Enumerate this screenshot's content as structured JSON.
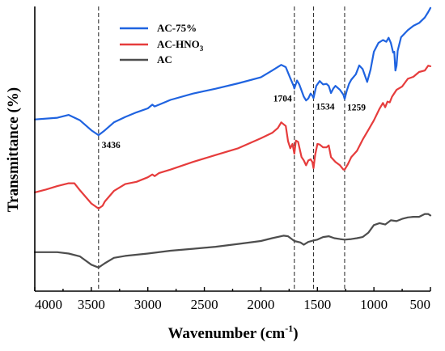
{
  "chart_data": {
    "type": "line",
    "title": "",
    "xlabel": "Wavenumber (cm",
    "xlabel_sup": "-1",
    "xlabel_suffix": ")",
    "ylabel": "Transmittance (%)",
    "xlim": [
      4000,
      500
    ],
    "x_reversed": true,
    "ylim": [
      0,
      100
    ],
    "y_ticks_labeled": false,
    "x_ticks": [
      4000,
      3500,
      3000,
      2500,
      2000,
      1500,
      1000,
      500
    ],
    "x_tick_labels": [
      "4000",
      "3500",
      "3000",
      "2500",
      "2000",
      "1500",
      "1000",
      "500"
    ],
    "legend_placement": "top-left",
    "grid": false,
    "reference_lines": [
      3436,
      1704,
      1534,
      1259
    ],
    "annotations": [
      {
        "text": "3436",
        "x": 3436,
        "series": "AC-75%"
      },
      {
        "text": "1704",
        "x": 1704,
        "series": "AC-75%"
      },
      {
        "text": "1534",
        "x": 1534,
        "series": "AC-75%"
      },
      {
        "text": "1259",
        "x": 1259,
        "series": "AC-75%"
      }
    ],
    "series": [
      {
        "name": "AC-75%",
        "legend_label": "AC-75%",
        "color": "#1f63e0",
        "points": [
          [
            4000,
            60.3
          ],
          [
            3800,
            60.9
          ],
          [
            3700,
            61.9
          ],
          [
            3600,
            60.0
          ],
          [
            3500,
            56.5
          ],
          [
            3436,
            54.8
          ],
          [
            3380,
            56.5
          ],
          [
            3300,
            59.3
          ],
          [
            3200,
            61.2
          ],
          [
            3100,
            62.8
          ],
          [
            3000,
            64.2
          ],
          [
            2960,
            65.5
          ],
          [
            2940,
            64.9
          ],
          [
            2900,
            65.5
          ],
          [
            2800,
            67.2
          ],
          [
            2600,
            69.4
          ],
          [
            2400,
            71.1
          ],
          [
            2200,
            73.0
          ],
          [
            2000,
            75.1
          ],
          [
            1900,
            77.5
          ],
          [
            1820,
            79.5
          ],
          [
            1780,
            78.7
          ],
          [
            1740,
            74.8
          ],
          [
            1710,
            72.1
          ],
          [
            1704,
            71.2
          ],
          [
            1680,
            74.0
          ],
          [
            1660,
            72.6
          ],
          [
            1620,
            68.3
          ],
          [
            1600,
            67.0
          ],
          [
            1580,
            67.7
          ],
          [
            1560,
            69.4
          ],
          [
            1545,
            68.7
          ],
          [
            1534,
            67.8
          ],
          [
            1510,
            72.1
          ],
          [
            1480,
            73.8
          ],
          [
            1450,
            72.6
          ],
          [
            1420,
            72.8
          ],
          [
            1400,
            72.1
          ],
          [
            1380,
            69.6
          ],
          [
            1360,
            71.1
          ],
          [
            1340,
            72.1
          ],
          [
            1300,
            70.7
          ],
          [
            1270,
            69.0
          ],
          [
            1259,
            67.5
          ],
          [
            1240,
            70.4
          ],
          [
            1220,
            72.8
          ],
          [
            1200,
            74.3
          ],
          [
            1160,
            76.2
          ],
          [
            1130,
            79.3
          ],
          [
            1100,
            78.0
          ],
          [
            1080,
            75.8
          ],
          [
            1060,
            73.5
          ],
          [
            1030,
            77.8
          ],
          [
            1000,
            84.1
          ],
          [
            960,
            87.2
          ],
          [
            920,
            88.2
          ],
          [
            890,
            87.6
          ],
          [
            870,
            89.0
          ],
          [
            850,
            87.2
          ],
          [
            830,
            83.8
          ],
          [
            820,
            84.1
          ],
          [
            810,
            77.5
          ],
          [
            800,
            79.2
          ],
          [
            790,
            84.4
          ],
          [
            760,
            89.2
          ],
          [
            700,
            91.7
          ],
          [
            650,
            93.2
          ],
          [
            600,
            94.2
          ],
          [
            550,
            96.1
          ],
          [
            520,
            98.0
          ],
          [
            500,
            99.5
          ]
        ]
      },
      {
        "name": "AC-HNO3",
        "legend_label_main": "AC-HNO",
        "legend_label_sub": "3",
        "color": "#e63c3c",
        "points": [
          [
            4000,
            34.7
          ],
          [
            3900,
            35.7
          ],
          [
            3800,
            36.9
          ],
          [
            3700,
            37.9
          ],
          [
            3650,
            37.9
          ],
          [
            3600,
            35.4
          ],
          [
            3500,
            30.8
          ],
          [
            3436,
            29.0
          ],
          [
            3400,
            30.0
          ],
          [
            3380,
            31.5
          ],
          [
            3300,
            35.2
          ],
          [
            3200,
            37.6
          ],
          [
            3100,
            38.4
          ],
          [
            3000,
            40.0
          ],
          [
            2960,
            41.0
          ],
          [
            2940,
            40.4
          ],
          [
            2900,
            41.5
          ],
          [
            2800,
            42.7
          ],
          [
            2600,
            45.4
          ],
          [
            2400,
            47.8
          ],
          [
            2200,
            50.2
          ],
          [
            2000,
            53.7
          ],
          [
            1900,
            55.6
          ],
          [
            1850,
            57.3
          ],
          [
            1820,
            59.3
          ],
          [
            1780,
            58.0
          ],
          [
            1760,
            52.7
          ],
          [
            1740,
            50.2
          ],
          [
            1720,
            51.7
          ],
          [
            1704,
            48.3
          ],
          [
            1690,
            52.9
          ],
          [
            1670,
            52.4
          ],
          [
            1640,
            47.1
          ],
          [
            1620,
            45.9
          ],
          [
            1600,
            44.2
          ],
          [
            1580,
            45.9
          ],
          [
            1560,
            46.3
          ],
          [
            1545,
            45.4
          ],
          [
            1534,
            43.2
          ],
          [
            1520,
            47.8
          ],
          [
            1500,
            51.7
          ],
          [
            1480,
            51.5
          ],
          [
            1450,
            50.5
          ],
          [
            1420,
            50.5
          ],
          [
            1400,
            51.2
          ],
          [
            1380,
            47.1
          ],
          [
            1340,
            45.4
          ],
          [
            1300,
            44.2
          ],
          [
            1270,
            42.7
          ],
          [
            1259,
            42.7
          ],
          [
            1230,
            44.6
          ],
          [
            1200,
            47.1
          ],
          [
            1150,
            49.3
          ],
          [
            1100,
            53.2
          ],
          [
            1050,
            56.6
          ],
          [
            1000,
            60.0
          ],
          [
            950,
            64.1
          ],
          [
            920,
            66.1
          ],
          [
            900,
            64.6
          ],
          [
            880,
            66.6
          ],
          [
            860,
            66.3
          ],
          [
            840,
            68.3
          ],
          [
            800,
            70.7
          ],
          [
            750,
            71.9
          ],
          [
            700,
            74.6
          ],
          [
            650,
            75.3
          ],
          [
            600,
            77.0
          ],
          [
            550,
            77.5
          ],
          [
            520,
            79.2
          ],
          [
            500,
            79.0
          ]
        ]
      },
      {
        "name": "AC",
        "legend_label": "AC",
        "color": "#4d4d4d",
        "points": [
          [
            4000,
            13.7
          ],
          [
            3800,
            13.7
          ],
          [
            3700,
            13.2
          ],
          [
            3600,
            12.2
          ],
          [
            3500,
            9.3
          ],
          [
            3436,
            8.3
          ],
          [
            3380,
            9.8
          ],
          [
            3300,
            11.7
          ],
          [
            3200,
            12.4
          ],
          [
            3000,
            13.2
          ],
          [
            2800,
            14.2
          ],
          [
            2600,
            14.9
          ],
          [
            2400,
            15.6
          ],
          [
            2200,
            16.6
          ],
          [
            2000,
            17.6
          ],
          [
            1900,
            18.6
          ],
          [
            1800,
            19.5
          ],
          [
            1760,
            19.3
          ],
          [
            1704,
            17.6
          ],
          [
            1650,
            17.1
          ],
          [
            1620,
            16.3
          ],
          [
            1580,
            17.3
          ],
          [
            1534,
            17.8
          ],
          [
            1500,
            18.1
          ],
          [
            1450,
            19.0
          ],
          [
            1400,
            19.3
          ],
          [
            1350,
            18.6
          ],
          [
            1300,
            18.3
          ],
          [
            1259,
            18.1
          ],
          [
            1200,
            18.3
          ],
          [
            1150,
            18.6
          ],
          [
            1100,
            19.0
          ],
          [
            1050,
            20.5
          ],
          [
            1000,
            23.2
          ],
          [
            950,
            23.9
          ],
          [
            900,
            23.4
          ],
          [
            850,
            24.9
          ],
          [
            800,
            24.6
          ],
          [
            750,
            25.4
          ],
          [
            700,
            25.9
          ],
          [
            650,
            26.1
          ],
          [
            600,
            26.1
          ],
          [
            550,
            27.1
          ],
          [
            520,
            27.1
          ],
          [
            500,
            26.6
          ]
        ]
      }
    ]
  }
}
